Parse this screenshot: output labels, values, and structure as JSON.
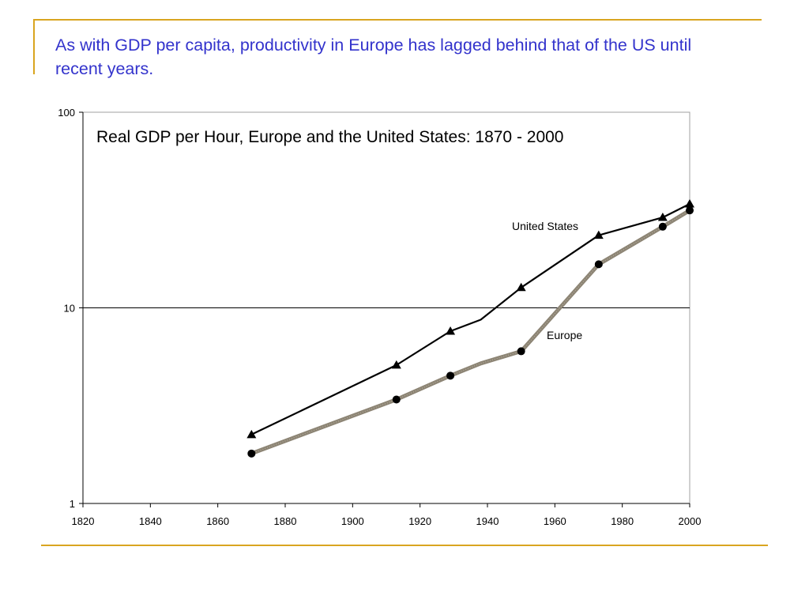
{
  "slide": {
    "title": "As with GDP per capita, productivity in Europe has lagged behind that of the US until recent years."
  },
  "colors": {
    "title_text": "#3333cc",
    "frame": "#d9a520",
    "us_line": "#000000",
    "europe_line": "#8c8474",
    "gridline": "#000000"
  },
  "chart_data": {
    "type": "line",
    "title": "Real GDP per Hour, Europe and the United States: 1870 - 2000",
    "xlabel": "",
    "ylabel": "",
    "xlim": [
      1820,
      2000
    ],
    "ylim": [
      1,
      100
    ],
    "yscale": "log",
    "grid": "horizontal at 10",
    "x_ticks": [
      "1820",
      "1840",
      "1860",
      "1880",
      "1900",
      "1920",
      "1940",
      "1960",
      "1980",
      "2000"
    ],
    "y_ticks": [
      "1",
      "10",
      "100"
    ],
    "series": [
      {
        "name": "United States",
        "marker": "triangle",
        "x": [
          1870,
          1913,
          1929,
          1938,
          1950,
          1973,
          1992,
          2000
        ],
        "y": [
          2.25,
          5.1,
          7.6,
          8.7,
          12.7,
          23.5,
          29.0,
          34.0
        ]
      },
      {
        "name": "Europe",
        "marker": "circle",
        "x": [
          1870,
          1913,
          1929,
          1938,
          1950,
          1973,
          1992,
          2000
        ],
        "y": [
          1.8,
          3.4,
          4.5,
          5.2,
          6.0,
          16.7,
          26.0,
          31.5
        ]
      }
    ]
  }
}
